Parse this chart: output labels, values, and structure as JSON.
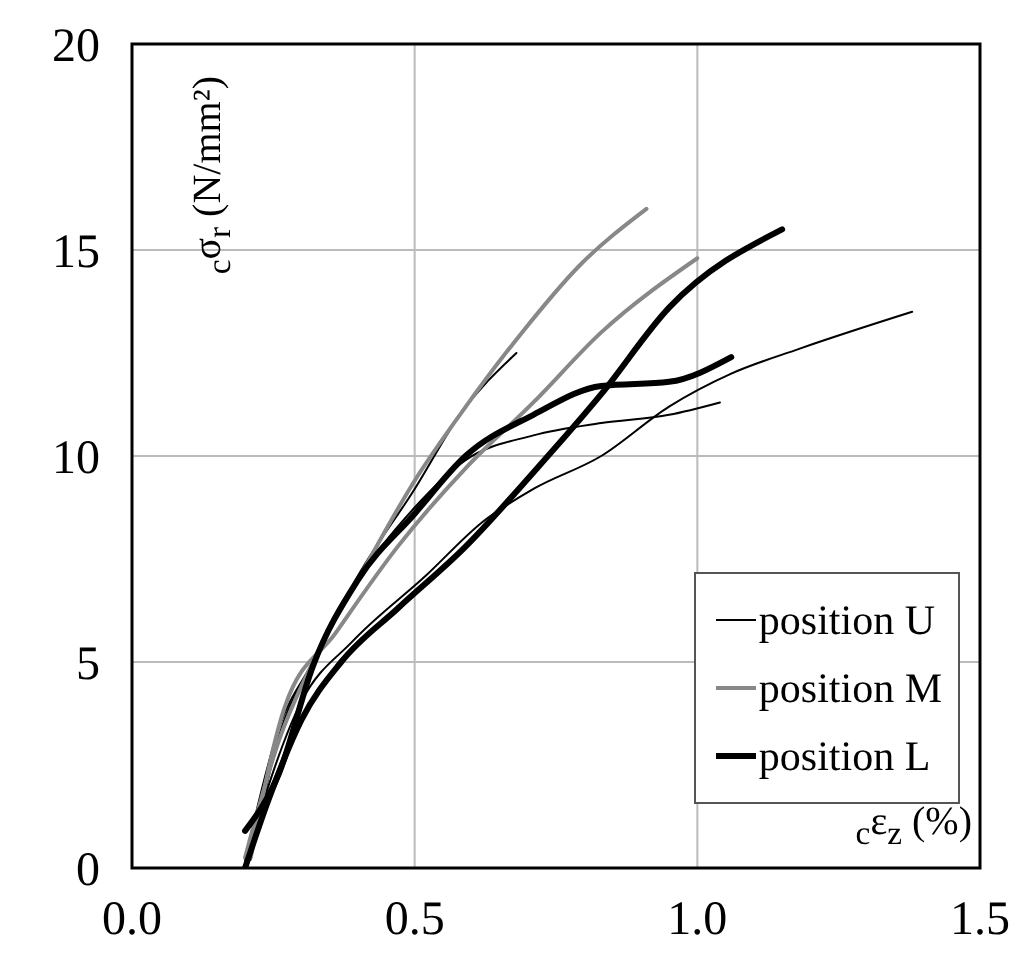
{
  "chart_data": {
    "type": "line",
    "xlabel": "$_{c}$ε$_{z}$ (%)",
    "ylabel": "$_{c}$σ$_{r}$ (N/mm²)",
    "xlim": [
      0,
      1.5
    ],
    "ylim": [
      0,
      20
    ],
    "xticks": [
      {
        "value": 0,
        "label": "0.0"
      },
      {
        "value": 0.5,
        "label": "0.5"
      },
      {
        "value": 1,
        "label": "1.0"
      },
      {
        "value": 1.5,
        "label": "1.5"
      }
    ],
    "yticks": [
      0,
      5,
      10,
      15,
      20
    ],
    "grid": true,
    "legend": "bottom right",
    "marker": "none",
    "line_style": "solid",
    "series": [
      {
        "name": "position U",
        "color": "#000000",
        "x": [
          0.2,
          0.26,
          0.32,
          0.4,
          0.5,
          0.58,
          0.68
        ],
        "values": [
          0.2,
          3.4,
          5.0,
          7.1,
          9.2,
          11.0,
          12.5
        ]
      },
      {
        "color": "#000000",
        "x": [
          0.21,
          0.26,
          0.32,
          0.4,
          0.5,
          0.59,
          0.71,
          0.83,
          0.95,
          1.04
        ],
        "values": [
          0.2,
          3.2,
          5.0,
          7.0,
          8.75,
          9.9,
          10.5,
          10.8,
          11.0,
          11.3
        ]
      },
      {
        "color": "#000000",
        "x": [
          0.2,
          0.3,
          0.39,
          0.52,
          0.62,
          0.71,
          0.83,
          0.95,
          1.06,
          1.18,
          1.38
        ],
        "values": [
          0.2,
          4.05,
          5.5,
          7.1,
          8.4,
          9.2,
          10.0,
          11.2,
          12.0,
          12.6,
          13.5
        ]
      },
      {
        "name": "position M",
        "color": "#888888",
        "x": [
          0.2,
          0.26,
          0.32,
          0.4,
          0.5,
          0.58,
          0.69,
          0.79,
          0.91
        ],
        "values": [
          0.25,
          3.1,
          5.0,
          7.0,
          9.4,
          11.0,
          13.0,
          14.6,
          16.0
        ]
      },
      {
        "color": "#888888",
        "x": [
          0.21,
          0.27,
          0.36,
          0.47,
          0.59,
          0.71,
          0.83,
          1.0
        ],
        "values": [
          0.25,
          3.9,
          5.7,
          7.8,
          9.7,
          11.3,
          13.0,
          14.8
        ]
      },
      {
        "name": "position L",
        "color": "#000000",
        "x": [
          0.2,
          0.26,
          0.32,
          0.4,
          0.5,
          0.59,
          0.71,
          0.83,
          0.95,
          1.06
        ],
        "values": [
          0.9,
          2.3,
          4.9,
          7.0,
          8.6,
          10.0,
          11.0,
          11.7,
          11.8,
          12.4
        ]
      },
      {
        "color": "#000000",
        "x": [
          0.2,
          0.24,
          0.3,
          0.37,
          0.47,
          0.59,
          0.71,
          0.83,
          0.95,
          1.15
        ],
        "values": [
          0.0,
          1.6,
          3.6,
          5.0,
          6.3,
          7.8,
          9.6,
          11.5,
          13.6,
          15.5
        ]
      }
    ]
  }
}
